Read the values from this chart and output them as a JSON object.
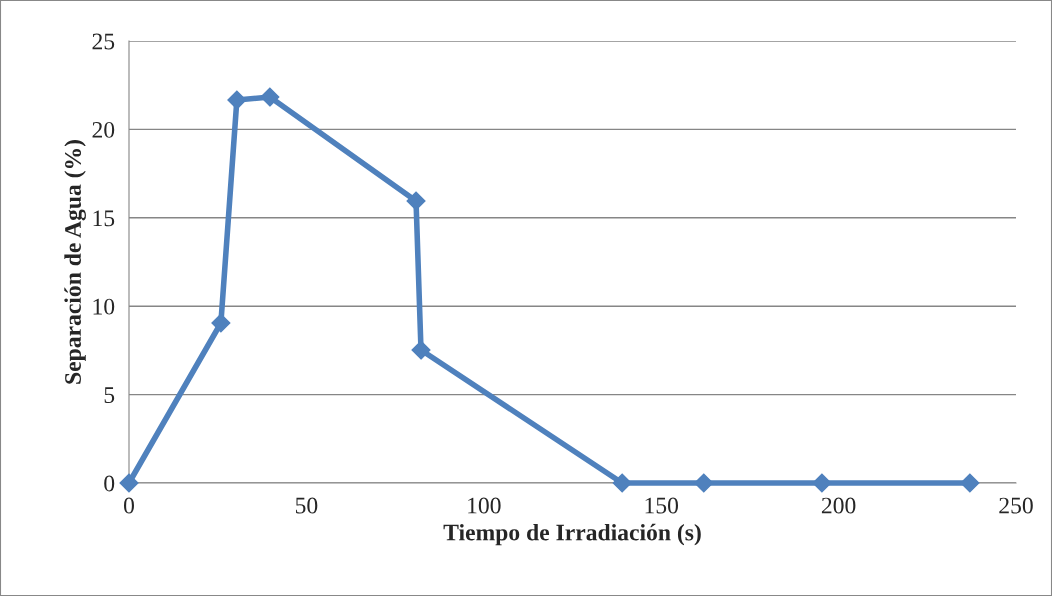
{
  "chart_data": {
    "type": "line",
    "xlabel": "Tiempo de Irradiación (s)",
    "ylabel": "Separación de Agua (%)",
    "series": [
      {
        "color": "#4f81bd",
        "x": [
          0,
          25.9,
          30.4,
          39.7,
          80.9,
          82.3,
          139,
          162,
          195.3,
          237
        ],
        "values": [
          0,
          9.05,
          21.66,
          21.83,
          15.95,
          7.52,
          0,
          0,
          0,
          0
        ]
      }
    ],
    "xlim": [
      0,
      250
    ],
    "xticks": [
      0,
      50,
      100,
      150,
      200,
      250
    ],
    "ylim": [
      0,
      25
    ],
    "yticks": [
      0,
      5,
      10,
      15,
      20,
      25
    ],
    "grid": "y",
    "marker": "diamond",
    "line_style": "solid"
  }
}
